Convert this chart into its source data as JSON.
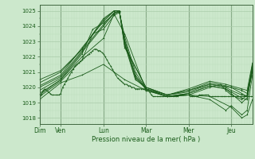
{
  "background_color": "#cce8cc",
  "plot_bg_color": "#cce8cc",
  "line_color": "#1a5c1a",
  "grid_major_color": "#aaccaa",
  "grid_minor_color": "#bbddbb",
  "axis_label_color": "#1a5c1a",
  "tick_label_color": "#1a5c1a",
  "ylabel_labels": [
    1018,
    1019,
    1020,
    1021,
    1022,
    1023,
    1024,
    1025
  ],
  "ylim": [
    1017.6,
    1025.4
  ],
  "xlabel": "Pression niveau de la mer( hPa )",
  "day_labels": [
    "Dim",
    "Ven",
    "Lun",
    "Mar",
    "Mer",
    "Jeu"
  ],
  "day_positions": [
    0,
    24,
    72,
    120,
    168,
    216
  ],
  "total_hours": 240,
  "series": [
    {
      "points": [
        [
          0,
          1019.3
        ],
        [
          2,
          1019.5
        ],
        [
          4,
          1019.8
        ],
        [
          6,
          1019.9
        ],
        [
          8,
          1019.8
        ],
        [
          10,
          1019.7
        ],
        [
          12,
          1019.6
        ],
        [
          14,
          1019.5
        ],
        [
          16,
          1019.5
        ],
        [
          18,
          1019.5
        ],
        [
          20,
          1019.5
        ],
        [
          22,
          1019.5
        ],
        [
          24,
          1019.6
        ],
        [
          26,
          1020.0
        ],
        [
          28,
          1020.2
        ],
        [
          30,
          1020.4
        ],
        [
          32,
          1020.6
        ],
        [
          34,
          1020.8
        ],
        [
          36,
          1021.0
        ],
        [
          38,
          1021.2
        ],
        [
          40,
          1021.4
        ],
        [
          42,
          1021.5
        ],
        [
          44,
          1021.6
        ],
        [
          46,
          1021.7
        ],
        [
          48,
          1021.8
        ],
        [
          50,
          1021.9
        ],
        [
          52,
          1022.0
        ],
        [
          54,
          1022.1
        ],
        [
          56,
          1022.2
        ],
        [
          58,
          1022.3
        ],
        [
          60,
          1022.4
        ],
        [
          62,
          1022.5
        ],
        [
          64,
          1022.5
        ],
        [
          66,
          1022.4
        ],
        [
          68,
          1022.4
        ],
        [
          70,
          1022.3
        ],
        [
          72,
          1022.2
        ],
        [
          74,
          1022.0
        ],
        [
          76,
          1021.8
        ],
        [
          78,
          1021.6
        ],
        [
          80,
          1021.4
        ],
        [
          82,
          1021.2
        ],
        [
          84,
          1021.0
        ],
        [
          86,
          1020.8
        ],
        [
          88,
          1020.6
        ],
        [
          90,
          1020.5
        ],
        [
          92,
          1020.4
        ],
        [
          94,
          1020.3
        ],
        [
          96,
          1020.2
        ],
        [
          98,
          1020.2
        ],
        [
          100,
          1020.1
        ],
        [
          102,
          1020.1
        ],
        [
          104,
          1020.0
        ],
        [
          106,
          1020.0
        ],
        [
          108,
          1019.9
        ],
        [
          110,
          1019.9
        ],
        [
          112,
          1019.9
        ],
        [
          114,
          1019.9
        ],
        [
          116,
          1019.9
        ],
        [
          118,
          1019.9
        ],
        [
          120,
          1019.9
        ],
        [
          122,
          1019.8
        ],
        [
          124,
          1019.7
        ],
        [
          126,
          1019.5
        ],
        [
          128,
          1019.4
        ],
        [
          130,
          1019.4
        ],
        [
          132,
          1019.4
        ],
        [
          134,
          1019.4
        ],
        [
          136,
          1019.4
        ],
        [
          138,
          1019.4
        ],
        [
          140,
          1019.4
        ],
        [
          142,
          1019.4
        ],
        [
          144,
          1019.4
        ],
        [
          146,
          1019.4
        ],
        [
          148,
          1019.4
        ],
        [
          150,
          1019.4
        ],
        [
          152,
          1019.4
        ],
        [
          154,
          1019.4
        ],
        [
          156,
          1019.4
        ],
        [
          158,
          1019.5
        ],
        [
          160,
          1019.5
        ],
        [
          162,
          1019.5
        ],
        [
          164,
          1019.5
        ],
        [
          166,
          1019.5
        ],
        [
          168,
          1019.5
        ],
        [
          170,
          1019.4
        ],
        [
          172,
          1019.4
        ],
        [
          174,
          1019.4
        ],
        [
          176,
          1019.4
        ],
        [
          178,
          1019.4
        ],
        [
          180,
          1019.5
        ],
        [
          182,
          1019.5
        ],
        [
          184,
          1019.5
        ],
        [
          186,
          1019.5
        ],
        [
          188,
          1019.5
        ],
        [
          190,
          1019.5
        ],
        [
          192,
          1019.4
        ],
        [
          194,
          1019.4
        ],
        [
          196,
          1019.4
        ],
        [
          198,
          1019.4
        ],
        [
          200,
          1019.4
        ],
        [
          202,
          1019.4
        ],
        [
          204,
          1019.4
        ],
        [
          206,
          1019.4
        ],
        [
          208,
          1019.4
        ],
        [
          210,
          1019.4
        ],
        [
          212,
          1019.4
        ],
        [
          214,
          1019.4
        ],
        [
          216,
          1019.4
        ],
        [
          218,
          1019.4
        ],
        [
          220,
          1019.4
        ],
        [
          222,
          1019.4
        ],
        [
          224,
          1019.4
        ],
        [
          226,
          1019.4
        ],
        [
          228,
          1019.4
        ],
        [
          230,
          1019.4
        ],
        [
          232,
          1019.4
        ],
        [
          234,
          1019.4
        ],
        [
          236,
          1019.4
        ],
        [
          238,
          1019.4
        ],
        [
          240,
          1019.4
        ]
      ]
    },
    {
      "points": [
        [
          0,
          1019.2
        ],
        [
          24,
          1020.3
        ],
        [
          48,
          1020.8
        ],
        [
          72,
          1021.5
        ],
        [
          96,
          1020.5
        ],
        [
          120,
          1019.8
        ],
        [
          144,
          1019.4
        ],
        [
          168,
          1019.5
        ],
        [
          192,
          1019.4
        ],
        [
          216,
          1018.7
        ],
        [
          228,
          1018.0
        ],
        [
          234,
          1018.2
        ],
        [
          240,
          1019.2
        ]
      ]
    },
    {
      "points": [
        [
          0,
          1019.5
        ],
        [
          24,
          1020.5
        ],
        [
          48,
          1022.0
        ],
        [
          72,
          1023.2
        ],
        [
          84,
          1024.8
        ],
        [
          96,
          1023.5
        ],
        [
          120,
          1019.8
        ],
        [
          144,
          1019.4
        ],
        [
          168,
          1019.5
        ],
        [
          192,
          1019.2
        ],
        [
          210,
          1018.5
        ],
        [
          216,
          1018.8
        ],
        [
          228,
          1018.2
        ],
        [
          234,
          1018.5
        ],
        [
          240,
          1020.8
        ]
      ]
    },
    {
      "points": [
        [
          0,
          1019.4
        ],
        [
          24,
          1020.4
        ],
        [
          48,
          1021.8
        ],
        [
          60,
          1023.5
        ],
        [
          72,
          1023.8
        ],
        [
          84,
          1024.7
        ],
        [
          90,
          1024.9
        ],
        [
          96,
          1023.3
        ],
        [
          108,
          1021.0
        ],
        [
          120,
          1019.9
        ],
        [
          144,
          1019.4
        ],
        [
          168,
          1019.5
        ],
        [
          192,
          1020.0
        ],
        [
          204,
          1020.2
        ],
        [
          210,
          1019.8
        ],
        [
          216,
          1019.5
        ],
        [
          228,
          1019.2
        ],
        [
          234,
          1019.5
        ],
        [
          240,
          1021.0
        ]
      ]
    },
    {
      "points": [
        [
          0,
          1019.6
        ],
        [
          24,
          1020.5
        ],
        [
          48,
          1022.2
        ],
        [
          60,
          1023.8
        ],
        [
          72,
          1024.2
        ],
        [
          84,
          1024.8
        ],
        [
          90,
          1024.95
        ],
        [
          96,
          1023.1
        ],
        [
          108,
          1020.8
        ],
        [
          120,
          1019.9
        ],
        [
          144,
          1019.4
        ],
        [
          168,
          1019.6
        ],
        [
          192,
          1020.1
        ],
        [
          210,
          1019.9
        ],
        [
          216,
          1019.6
        ],
        [
          228,
          1019.0
        ],
        [
          234,
          1019.3
        ],
        [
          240,
          1021.1
        ]
      ]
    },
    {
      "points": [
        [
          0,
          1019.8
        ],
        [
          24,
          1020.6
        ],
        [
          48,
          1022.3
        ],
        [
          72,
          1024.0
        ],
        [
          84,
          1024.85
        ],
        [
          90,
          1024.95
        ],
        [
          96,
          1023.0
        ],
        [
          108,
          1020.7
        ],
        [
          120,
          1019.9
        ],
        [
          144,
          1019.4
        ],
        [
          168,
          1019.6
        ],
        [
          192,
          1020.1
        ],
        [
          210,
          1019.9
        ],
        [
          216,
          1019.7
        ],
        [
          228,
          1019.3
        ],
        [
          234,
          1019.2
        ],
        [
          240,
          1021.2
        ]
      ]
    },
    {
      "points": [
        [
          0,
          1020.0
        ],
        [
          24,
          1020.7
        ],
        [
          48,
          1022.4
        ],
        [
          72,
          1024.1
        ],
        [
          84,
          1024.88
        ],
        [
          90,
          1025.0
        ],
        [
          96,
          1022.9
        ],
        [
          108,
          1020.6
        ],
        [
          120,
          1019.9
        ],
        [
          144,
          1019.5
        ],
        [
          168,
          1019.7
        ],
        [
          192,
          1020.2
        ],
        [
          210,
          1020.0
        ],
        [
          216,
          1019.8
        ],
        [
          228,
          1019.5
        ],
        [
          234,
          1019.4
        ],
        [
          240,
          1021.3
        ]
      ]
    },
    {
      "points": [
        [
          0,
          1020.1
        ],
        [
          24,
          1020.8
        ],
        [
          48,
          1022.6
        ],
        [
          72,
          1024.3
        ],
        [
          84,
          1025.0
        ],
        [
          90,
          1025.0
        ],
        [
          96,
          1022.8
        ],
        [
          108,
          1020.5
        ],
        [
          120,
          1020.0
        ],
        [
          144,
          1019.5
        ],
        [
          168,
          1019.8
        ],
        [
          192,
          1020.2
        ],
        [
          216,
          1020.0
        ],
        [
          228,
          1019.6
        ],
        [
          234,
          1019.4
        ],
        [
          240,
          1021.4
        ]
      ]
    },
    {
      "points": [
        [
          0,
          1020.3
        ],
        [
          24,
          1021.0
        ],
        [
          48,
          1022.5
        ],
        [
          72,
          1024.4
        ],
        [
          84,
          1025.0
        ],
        [
          90,
          1025.0
        ],
        [
          96,
          1022.7
        ],
        [
          120,
          1020.0
        ],
        [
          144,
          1019.5
        ],
        [
          168,
          1019.8
        ],
        [
          192,
          1020.3
        ],
        [
          210,
          1020.1
        ],
        [
          216,
          1020.0
        ],
        [
          228,
          1019.8
        ],
        [
          234,
          1019.6
        ],
        [
          240,
          1021.5
        ]
      ]
    },
    {
      "points": [
        [
          0,
          1020.5
        ],
        [
          24,
          1021.1
        ],
        [
          48,
          1022.5
        ],
        [
          72,
          1024.5
        ],
        [
          84,
          1025.0
        ],
        [
          90,
          1025.0
        ],
        [
          96,
          1022.6
        ],
        [
          120,
          1020.0
        ],
        [
          144,
          1019.5
        ],
        [
          168,
          1019.9
        ],
        [
          192,
          1020.4
        ],
        [
          210,
          1020.2
        ],
        [
          216,
          1020.1
        ],
        [
          228,
          1019.9
        ],
        [
          234,
          1019.8
        ],
        [
          240,
          1021.6
        ]
      ]
    }
  ]
}
